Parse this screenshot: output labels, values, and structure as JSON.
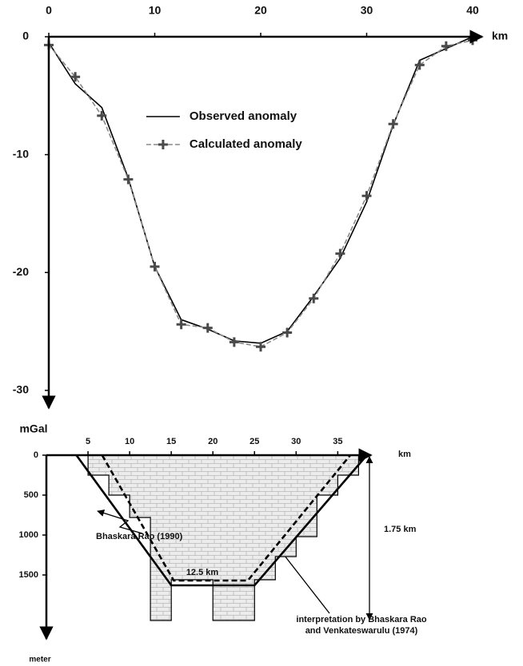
{
  "chart_data": [
    {
      "type": "line",
      "x_label": "km",
      "y_label": "mGal",
      "xlim": [
        0,
        40
      ],
      "ylim": [
        -31.5,
        0
      ],
      "xticks": [
        0,
        10,
        20,
        30,
        40
      ],
      "yticks": [
        0,
        -10,
        -20,
        -30
      ],
      "x": [
        0,
        2.5,
        5,
        7.5,
        10,
        12.5,
        15,
        17.5,
        20,
        22.5,
        25,
        27.5,
        30,
        32.5,
        35,
        37.5,
        40
      ],
      "legend": "upper-center",
      "series": [
        {
          "name": "Observed anomaly",
          "color": "#000000",
          "dash": false,
          "values": [
            -0.5,
            -4,
            -6,
            -12,
            -19.5,
            -24,
            -24.8,
            -25.8,
            -26,
            -25,
            -22,
            -18.8,
            -14,
            -7.5,
            -2,
            -1,
            0
          ]
        },
        {
          "name": "Calculated anomaly",
          "color": "#8a8a8a",
          "dash": true,
          "marker": "+",
          "marker_color": "#4a4a4a",
          "values": [
            -0.7,
            -3.4,
            -6.7,
            -12.1,
            -19.5,
            -24.4,
            -24.7,
            -25.9,
            -26.3,
            -25.1,
            -22.2,
            -18.4,
            -13.5,
            -7.4,
            -2.4,
            -0.8,
            -0.3
          ]
        }
      ]
    },
    {
      "type": "line",
      "x_label": "km",
      "y_label": "meter",
      "xlim": [
        0,
        39
      ],
      "ylim": [
        0,
        2300
      ],
      "y_inverted": true,
      "xticks": [
        5,
        10,
        15,
        20,
        25,
        30,
        35
      ],
      "yticks": [
        0,
        500,
        1000,
        1500
      ],
      "series": [
        {
          "color": "#000000",
          "pattern": "brick",
          "x": [
            5,
            5,
            7.5,
            7.5,
            10,
            10,
            12.5,
            12.5,
            15,
            15,
            20,
            20,
            25,
            25,
            27.5,
            27.5,
            30,
            30,
            32.5,
            32.5,
            35,
            35,
            37.5,
            37.5
          ],
          "values": [
            0,
            250,
            250,
            500,
            500,
            780,
            780,
            2070,
            2070,
            1560,
            1560,
            2070,
            2070,
            1560,
            1560,
            1270,
            1270,
            1020,
            1020,
            500,
            500,
            250,
            250,
            0
          ]
        },
        {
          "color": "#000000",
          "dash": true,
          "x": [
            6.7,
            15.3,
            24.2,
            36.5
          ],
          "values": [
            0,
            1570,
            1570,
            0
          ]
        },
        {
          "color": "#000000",
          "dash": false,
          "x": [
            3.6,
            15,
            25,
            38.5
          ],
          "values": [
            0,
            1630,
            1630,
            0
          ]
        }
      ],
      "annotations": [
        "Bhaskara Rao (1990)",
        "interpretation by Bhaskara Rao",
        "and Venkateswarulu (1974)",
        "1.75 km",
        "12.5 km"
      ]
    }
  ]
}
